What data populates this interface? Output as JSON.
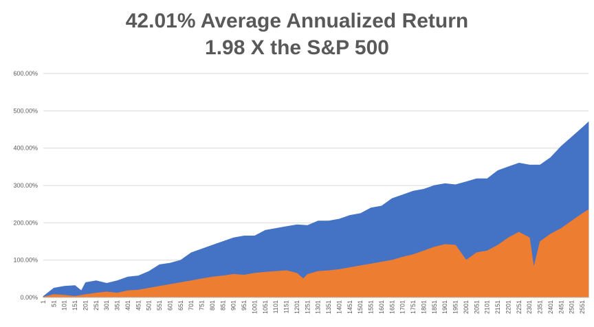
{
  "chart_data": {
    "type": "area",
    "title": "42.01% Average Annualized Return",
    "subtitle": "1.98 X the S&P 500",
    "xlabel": "",
    "ylabel": "",
    "ylim": [
      0,
      600
    ],
    "y_tick_labels": [
      "0.00%",
      "100.00%",
      "200.00%",
      "300.00%",
      "400.00%",
      "500.00%",
      "600.00%"
    ],
    "y_ticks": [
      0,
      100,
      200,
      300,
      400,
      500,
      600
    ],
    "xlim": [
      1,
      2580
    ],
    "x_tick_labels": [
      "1",
      "51",
      "101",
      "151",
      "201",
      "251",
      "301",
      "351",
      "401",
      "451",
      "501",
      "551",
      "601",
      "651",
      "701",
      "751",
      "801",
      "851",
      "901",
      "951",
      "1001",
      "1051",
      "1101",
      "1151",
      "1201",
      "1251",
      "1301",
      "1351",
      "1401",
      "1451",
      "1501",
      "1551",
      "1601",
      "1651",
      "1701",
      "1751",
      "1801",
      "1851",
      "1901",
      "1951",
      "2001",
      "2051",
      "2101",
      "2151",
      "2201",
      "2251",
      "2301",
      "2351",
      "2401",
      "2451",
      "2501",
      "2551"
    ],
    "grid": true,
    "legend": "none",
    "series": [
      {
        "color": "#4472c4",
        "x": [
          1,
          51,
          101,
          151,
          181,
          201,
          251,
          301,
          351,
          401,
          451,
          501,
          551,
          601,
          651,
          701,
          751,
          801,
          851,
          901,
          951,
          1001,
          1051,
          1101,
          1151,
          1201,
          1251,
          1301,
          1351,
          1401,
          1451,
          1501,
          1551,
          1601,
          1651,
          1701,
          1751,
          1801,
          1851,
          1901,
          1951,
          2001,
          2051,
          2101,
          2151,
          2201,
          2251,
          2301,
          2351,
          2401,
          2451,
          2501,
          2551,
          2580
        ],
        "values": [
          3,
          25,
          30,
          32,
          18,
          40,
          45,
          38,
          45,
          55,
          58,
          70,
          88,
          92,
          100,
          120,
          130,
          140,
          150,
          160,
          165,
          165,
          180,
          185,
          190,
          195,
          193,
          205,
          205,
          210,
          220,
          225,
          240,
          245,
          265,
          275,
          285,
          290,
          300,
          305,
          302,
          310,
          318,
          318,
          340,
          350,
          360,
          355,
          355,
          375,
          405,
          430,
          455,
          470
        ]
      },
      {
        "color": "#ed7d31",
        "x": [
          1,
          51,
          101,
          151,
          201,
          251,
          301,
          351,
          401,
          451,
          501,
          551,
          601,
          651,
          701,
          751,
          801,
          851,
          901,
          951,
          1001,
          1051,
          1101,
          1151,
          1201,
          1231,
          1251,
          1301,
          1351,
          1401,
          1451,
          1501,
          1551,
          1601,
          1651,
          1701,
          1751,
          1801,
          1851,
          1901,
          1951,
          2001,
          2051,
          2101,
          2151,
          2201,
          2251,
          2301,
          2321,
          2351,
          2401,
          2451,
          2501,
          2551,
          2580
        ],
        "values": [
          1,
          8,
          6,
          3,
          8,
          12,
          15,
          12,
          18,
          20,
          25,
          30,
          35,
          40,
          45,
          50,
          55,
          58,
          62,
          60,
          65,
          68,
          70,
          72,
          65,
          50,
          62,
          70,
          72,
          75,
          80,
          85,
          90,
          95,
          100,
          108,
          115,
          125,
          135,
          142,
          140,
          100,
          120,
          125,
          140,
          160,
          175,
          160,
          80,
          150,
          170,
          185,
          205,
          225,
          235
        ]
      }
    ]
  }
}
